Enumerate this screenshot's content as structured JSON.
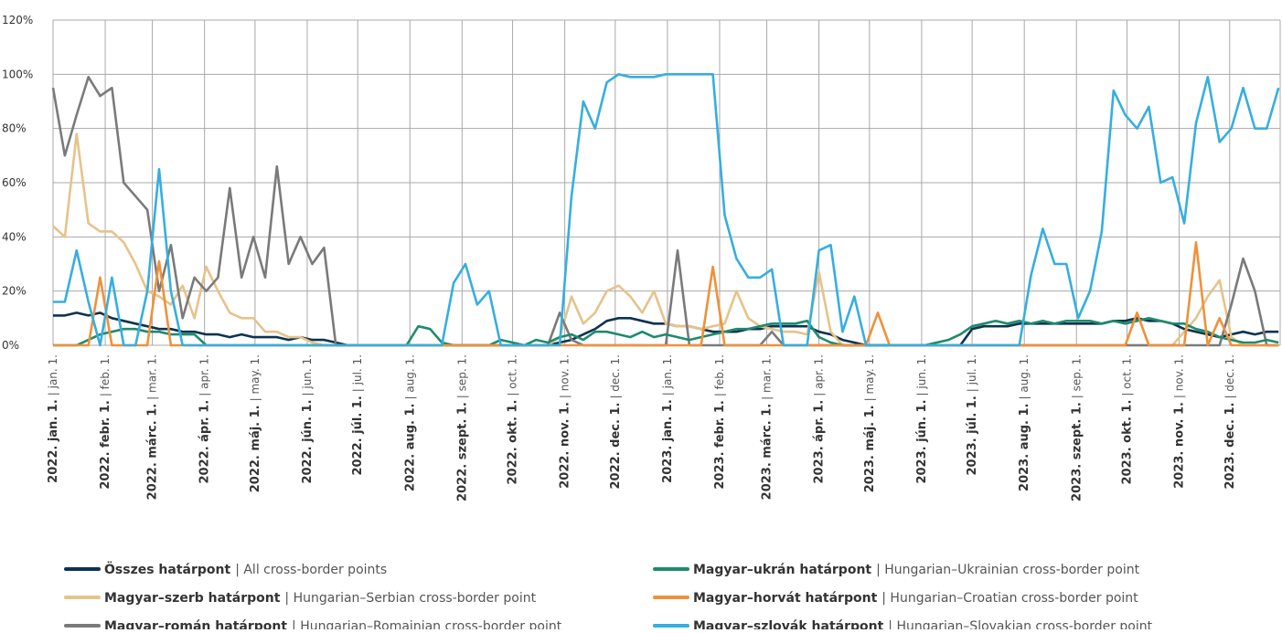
{
  "chart_data": {
    "type": "line",
    "xlim": [
      "2022-01-01",
      "2023-12-31"
    ],
    "ylim": [
      0,
      120
    ],
    "yticks": [
      {
        "value": 0,
        "label": "0%"
      },
      {
        "value": 20,
        "label": "20%"
      },
      {
        "value": 40,
        "label": "40%"
      },
      {
        "value": 60,
        "label": "60%"
      },
      {
        "value": 80,
        "label": "80%"
      },
      {
        "value": 100,
        "label": "100%"
      },
      {
        "value": 120,
        "label": "120%"
      }
    ],
    "xticks": [
      {
        "value": "2022-01-01",
        "label": "2022. jan. 1.",
        "label_en": "| jan. 1."
      },
      {
        "value": "2022-02-01",
        "label": "2022. febr. 1.",
        "label_en": "| feb. 1."
      },
      {
        "value": "2022-03-01",
        "label": "2022. márc. 1.",
        "label_en": "| mar. 1."
      },
      {
        "value": "2022-04-01",
        "label": "2022. ápr. 1.",
        "label_en": "| apr. 1."
      },
      {
        "value": "2022-05-01",
        "label": "2022. máj. 1.",
        "label_en": "| may. 1."
      },
      {
        "value": "2022-06-01",
        "label": "2022. jún. 1.",
        "label_en": "| jun. 1."
      },
      {
        "value": "2022-07-01",
        "label": "2022. júl. 1.",
        "label_en": "| jul. 1."
      },
      {
        "value": "2022-08-01",
        "label": "2022. aug. 1.",
        "label_en": "| aug. 1."
      },
      {
        "value": "2022-09-01",
        "label": "2022. szept. 1.",
        "label_en": "| sep. 1."
      },
      {
        "value": "2022-10-01",
        "label": "2022. okt. 1.",
        "label_en": "| oct. 1."
      },
      {
        "value": "2022-11-01",
        "label": "2022. nov. 1.",
        "label_en": "| nov. 1."
      },
      {
        "value": "2022-12-01",
        "label": "2022. dec. 1.",
        "label_en": "| dec. 1."
      },
      {
        "value": "2023-01-01",
        "label": "2023. jan. 1.",
        "label_en": "| jan. 1."
      },
      {
        "value": "2023-02-01",
        "label": "2023. febr. 1.",
        "label_en": "| feb. 1."
      },
      {
        "value": "2023-03-01",
        "label": "2023. márc. 1.",
        "label_en": "| mar. 1."
      },
      {
        "value": "2023-04-01",
        "label": "2023. ápr. 1.",
        "label_en": "| apr. 1."
      },
      {
        "value": "2023-05-01",
        "label": "2023. máj. 1.",
        "label_en": "| may. 1."
      },
      {
        "value": "2023-06-01",
        "label": "2023. jún. 1.",
        "label_en": "| jun. 1."
      },
      {
        "value": "2023-07-01",
        "label": "2023. júl. 1.",
        "label_en": "| jul. 1."
      },
      {
        "value": "2023-08-01",
        "label": "2023. aug. 1.",
        "label_en": "| aug. 1."
      },
      {
        "value": "2023-09-01",
        "label": "2023. szept. 1.",
        "label_en": "| sep. 1."
      },
      {
        "value": "2023-10-01",
        "label": "2023. okt. 1.",
        "label_en": "| oct. 1."
      },
      {
        "value": "2023-11-01",
        "label": "2023. nov. 1.",
        "label_en": "| nov. 1."
      },
      {
        "value": "2023-12-01",
        "label": "2023. dec. 1.",
        "label_en": "| dec. 1."
      }
    ],
    "grid": true,
    "x": [
      "2022-01-01",
      "2022-01-08",
      "2022-01-15",
      "2022-01-22",
      "2022-01-29",
      "2022-02-05",
      "2022-02-12",
      "2022-02-19",
      "2022-02-26",
      "2022-03-05",
      "2022-03-12",
      "2022-03-19",
      "2022-03-26",
      "2022-04-02",
      "2022-04-09",
      "2022-04-16",
      "2022-04-23",
      "2022-04-30",
      "2022-05-07",
      "2022-05-14",
      "2022-05-21",
      "2022-05-28",
      "2022-06-04",
      "2022-06-11",
      "2022-06-18",
      "2022-06-25",
      "2022-07-02",
      "2022-07-09",
      "2022-07-16",
      "2022-07-23",
      "2022-07-30",
      "2022-08-06",
      "2022-08-13",
      "2022-08-20",
      "2022-08-27",
      "2022-09-03",
      "2022-09-10",
      "2022-09-17",
      "2022-09-24",
      "2022-10-01",
      "2022-10-08",
      "2022-10-15",
      "2022-10-22",
      "2022-10-29",
      "2022-11-05",
      "2022-11-12",
      "2022-11-19",
      "2022-11-26",
      "2022-12-03",
      "2022-12-10",
      "2022-12-17",
      "2022-12-24",
      "2022-12-31",
      "2023-01-07",
      "2023-01-14",
      "2023-01-21",
      "2023-01-28",
      "2023-02-04",
      "2023-02-11",
      "2023-02-18",
      "2023-02-25",
      "2023-03-04",
      "2023-03-11",
      "2023-03-18",
      "2023-03-25",
      "2023-04-01",
      "2023-04-08",
      "2023-04-15",
      "2023-04-22",
      "2023-04-29",
      "2023-05-06",
      "2023-05-13",
      "2023-05-20",
      "2023-05-27",
      "2023-06-03",
      "2023-06-10",
      "2023-06-17",
      "2023-06-24",
      "2023-07-01",
      "2023-07-08",
      "2023-07-15",
      "2023-07-22",
      "2023-07-29",
      "2023-08-05",
      "2023-08-12",
      "2023-08-19",
      "2023-08-26",
      "2023-09-02",
      "2023-09-09",
      "2023-09-16",
      "2023-09-23",
      "2023-09-30",
      "2023-10-07",
      "2023-10-14",
      "2023-10-21",
      "2023-10-28",
      "2023-11-04",
      "2023-11-11",
      "2023-11-18",
      "2023-11-25",
      "2023-12-02",
      "2023-12-09",
      "2023-12-16",
      "2023-12-23",
      "2023-12-30"
    ],
    "series": [
      {
        "name": "Összes határpont",
        "name_en": "| All cross-border points",
        "color": "#0d3350",
        "values": [
          11,
          11,
          12,
          11,
          12,
          10,
          9,
          8,
          7,
          6,
          6,
          5,
          5,
          4,
          4,
          3,
          4,
          3,
          3,
          3,
          2,
          3,
          2,
          2,
          1,
          0,
          0,
          0,
          0,
          0,
          0,
          0,
          0,
          0,
          0,
          0,
          0,
          0,
          0,
          0,
          0,
          0,
          0,
          1,
          2,
          4,
          6,
          9,
          10,
          10,
          9,
          8,
          8,
          7,
          7,
          6,
          5,
          5,
          5,
          6,
          6,
          7,
          7,
          7,
          7,
          5,
          4,
          2,
          1,
          0,
          0,
          0,
          0,
          0,
          0,
          0,
          0,
          0,
          6,
          7,
          7,
          7,
          8,
          8,
          8,
          8,
          8,
          8,
          8,
          8,
          9,
          9,
          10,
          9,
          9,
          8,
          6,
          5,
          4,
          3,
          4,
          5,
          4,
          5,
          5
        ]
      },
      {
        "name": "Magyar–szerb határpont",
        "name_en": "| Hungarian–Serbian cross-border point",
        "color": "#e6c38a",
        "values": [
          44,
          40,
          78,
          45,
          42,
          42,
          38,
          30,
          20,
          18,
          15,
          22,
          10,
          29,
          20,
          12,
          10,
          10,
          5,
          5,
          3,
          3,
          1,
          0,
          0,
          0,
          0,
          0,
          0,
          0,
          0,
          0,
          0,
          0,
          0,
          0,
          0,
          0,
          0,
          0,
          0,
          0,
          0,
          3,
          18,
          8,
          12,
          20,
          22,
          18,
          12,
          20,
          8,
          7,
          7,
          6,
          7,
          8,
          20,
          10,
          7,
          6,
          5,
          5,
          4,
          27,
          5,
          0,
          0,
          0,
          0,
          0,
          0,
          0,
          0,
          0,
          0,
          0,
          0,
          0,
          0,
          0,
          0,
          0,
          0,
          0,
          0,
          0,
          0,
          0,
          0,
          0,
          0,
          0,
          0,
          0,
          5,
          10,
          18,
          24,
          3,
          0,
          0,
          0,
          0
        ]
      },
      {
        "name": "Magyar–román határpont",
        "name_en": "| Hungarian–Romainian cross-border point",
        "color": "#7a7a7a",
        "values": [
          95,
          70,
          85,
          99,
          92,
          95,
          60,
          55,
          50,
          20,
          37,
          10,
          25,
          20,
          25,
          58,
          25,
          40,
          25,
          66,
          30,
          40,
          30,
          36,
          0,
          0,
          0,
          0,
          0,
          0,
          0,
          0,
          0,
          0,
          0,
          0,
          0,
          0,
          0,
          0,
          0,
          0,
          0,
          12,
          2,
          0,
          0,
          0,
          0,
          0,
          0,
          0,
          0,
          35,
          0,
          0,
          0,
          0,
          0,
          0,
          0,
          5,
          0,
          0,
          0,
          0,
          0,
          0,
          0,
          0,
          0,
          0,
          0,
          0,
          0,
          0,
          0,
          0,
          0,
          0,
          0,
          0,
          0,
          0,
          0,
          0,
          0,
          0,
          0,
          0,
          0,
          0,
          0,
          0,
          0,
          0,
          0,
          0,
          0,
          0,
          15,
          32,
          20,
          0,
          0
        ]
      },
      {
        "name": "Magyar–ukrán határpont",
        "name_en": "| Hungarian–Ukrainian cross-border point",
        "color": "#1e8a6e",
        "values": [
          0,
          0,
          0,
          2,
          4,
          5,
          6,
          6,
          5,
          5,
          4,
          4,
          4,
          0,
          0,
          0,
          0,
          0,
          0,
          0,
          0,
          0,
          0,
          0,
          0,
          0,
          0,
          0,
          0,
          0,
          0,
          7,
          6,
          1,
          0,
          0,
          0,
          0,
          2,
          1,
          0,
          2,
          1,
          3,
          4,
          2,
          5,
          5,
          4,
          3,
          5,
          3,
          4,
          3,
          2,
          3,
          4,
          5,
          6,
          6,
          7,
          8,
          8,
          8,
          9,
          3,
          1,
          0,
          0,
          0,
          0,
          0,
          0,
          0,
          0,
          1,
          2,
          4,
          7,
          8,
          9,
          8,
          9,
          8,
          9,
          8,
          9,
          9,
          9,
          8,
          9,
          8,
          9,
          10,
          9,
          8,
          8,
          6,
          5,
          3,
          2,
          1,
          1,
          2,
          1
        ]
      },
      {
        "name": "Magyar–horvát határpont",
        "name_en": "| Hungarian–Croatian cross-border point",
        "color": "#f0913a",
        "values": [
          0,
          0,
          0,
          0,
          25,
          0,
          0,
          0,
          0,
          31,
          0,
          0,
          0,
          0,
          0,
          0,
          0,
          0,
          0,
          0,
          0,
          0,
          0,
          0,
          0,
          0,
          0,
          0,
          0,
          0,
          0,
          0,
          0,
          0,
          0,
          0,
          0,
          0,
          0,
          0,
          0,
          0,
          0,
          0,
          0,
          0,
          0,
          0,
          0,
          0,
          0,
          0,
          0,
          0,
          0,
          0,
          29,
          0,
          0,
          0,
          0,
          0,
          0,
          0,
          0,
          0,
          0,
          0,
          0,
          0,
          12,
          0,
          0,
          0,
          0,
          0,
          0,
          0,
          0,
          0,
          0,
          0,
          0,
          0,
          0,
          0,
          0,
          0,
          0,
          0,
          0,
          0,
          12,
          0,
          0,
          0,
          0,
          38,
          0,
          10,
          0,
          0,
          0,
          0,
          0
        ]
      },
      {
        "name": "Magyar–szlovák határpont",
        "name_en": "| Hungarian–Slovakian cross-border point",
        "color": "#36aee0",
        "values": [
          16,
          16,
          35,
          16,
          0,
          25,
          0,
          0,
          20,
          65,
          20,
          0,
          0,
          0,
          0,
          0,
          0,
          0,
          0,
          0,
          0,
          0,
          0,
          0,
          0,
          0,
          0,
          0,
          0,
          0,
          0,
          0,
          0,
          0,
          23,
          30,
          15,
          20,
          0,
          0,
          0,
          0,
          0,
          0,
          55,
          90,
          80,
          97,
          100,
          99,
          99,
          99,
          100,
          100,
          100,
          100,
          100,
          48,
          32,
          25,
          25,
          28,
          0,
          0,
          0,
          35,
          37,
          5,
          18,
          0,
          0,
          0,
          0,
          0,
          0,
          0,
          0,
          0,
          0,
          0,
          0,
          0,
          0,
          26,
          43,
          30,
          30,
          10,
          20,
          42,
          94,
          85,
          80,
          88,
          60,
          62,
          45,
          82,
          99,
          75,
          80,
          95,
          80,
          80,
          95
        ]
      }
    ]
  }
}
